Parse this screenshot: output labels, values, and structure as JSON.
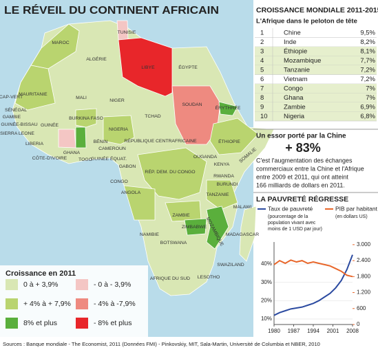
{
  "header": {
    "title": "LE RÉVEIL DU CONTINENT AFRICAIN"
  },
  "map": {
    "countries": [
      "MAROC",
      "ALGÉRIE",
      "TUNISIE",
      "LIBYE",
      "ÉGYPTE",
      "CAP-VERT",
      "MAURITANIE",
      "MALI",
      "NIGER",
      "TCHAD",
      "SOUDAN",
      "ÉRYTHRÉE",
      "SÉNÉGAL",
      "GAMBIE",
      "GUINÉE-BISSAU",
      "GUINÉE",
      "SIERRA LEONE",
      "LIBERIA",
      "BURKINA FASO",
      "NIGERIA",
      "CÔTE-D'IVOIRE",
      "GHANA",
      "TOGO",
      "BÉNIN",
      "CAMEROUN",
      "GUINÉE ÉQUAT.",
      "GABON",
      "RÉPUBLIQUE CENTRAFRICAINE",
      "ÉTHIOPIE",
      "OUGANDA",
      "KENYA",
      "CONGO",
      "RÉP. DEM. DU CONGO",
      "RWANDA",
      "BURUNDI",
      "TANZANIE",
      "ANGOLA",
      "MALAWI",
      "ZAMBIE",
      "ZIMBABWE",
      "MOZAMBIQUE",
      "NAMIBIE",
      "BOTSWANA",
      "MADAGASCAR",
      "SWAZILAND",
      "AFRIQUE DU SUD",
      "LESOTHO",
      "SOMALIE"
    ]
  },
  "legend": {
    "title": "Croissance en 2011",
    "items": [
      "0 à + 3,9%",
      "+ 4% à + 7,9%",
      "8% et plus",
      "- 0 à - 3,9%",
      "- 4% à -7,9%",
      "- 8% et plus"
    ]
  },
  "ranking": {
    "title": "CROISSANCE MONDIALE 2011-2015",
    "subtitle": "L'Afrique dans le peloton de tête",
    "rows": [
      [
        "1",
        "Chine",
        "9,5%"
      ],
      [
        "2",
        "Inde",
        "8,2%"
      ],
      [
        "3",
        "Éthiopie",
        "8,1%"
      ],
      [
        "4",
        "Mozambique",
        "7,7%"
      ],
      [
        "5",
        "Tanzanie",
        "7,2%"
      ],
      [
        "6",
        "Vietnam",
        "7,2%"
      ],
      [
        "7",
        "Congo",
        "7%"
      ],
      [
        "8",
        "Ghana",
        "7%"
      ],
      [
        "9",
        "Zambie",
        "6,9%"
      ],
      [
        "10",
        "Nigeria",
        "6,8%"
      ]
    ]
  },
  "china": {
    "title": "Un essor porté par la Chine",
    "figure": "+ 83%",
    "text": [
      "C'est l'augmentation des échanges",
      "commerciaux entre la Chine et l'Afrique",
      "entre 2009 et 2011, qui ont atteint",
      "166 milliards de dollars en 2011."
    ]
  },
  "chart_data": {
    "type": "line",
    "title": "LA PAUVRETÉ RÉGRESSE",
    "x": [
      1980,
      1982,
      1984,
      1986,
      1988,
      1990,
      1992,
      1994,
      1996,
      1998,
      2000,
      2002,
      2004,
      2006,
      2008
    ],
    "series": [
      {
        "name": "Taux de pauvreté",
        "note": [
          "(pourcentage de la",
          "population vivant avec",
          "moins de 1 USD par jour)"
        ],
        "color": "#2b4aa0",
        "values": [
          12,
          13.5,
          14.5,
          15.5,
          16,
          16.5,
          17.5,
          18.5,
          20,
          22,
          24,
          27,
          31,
          37,
          45
        ]
      },
      {
        "name": "PIB par habitant",
        "note": [
          "(en dollars US)"
        ],
        "color": "#e8662a",
        "axis": "y2",
        "values": [
          2250,
          2400,
          2300,
          2420,
          2350,
          2400,
          2300,
          2350,
          2300,
          2250,
          2200,
          2100,
          2000,
          1850,
          1800
        ]
      }
    ],
    "xlim": [
      1980,
      2008
    ],
    "xticks": [
      1980,
      1987,
      1994,
      2001,
      2008
    ],
    "ylim": [
      7,
      52
    ],
    "yticks": [
      {
        "value": 10,
        "label": "10%"
      },
      {
        "value": 20,
        "label": "20%"
      },
      {
        "value": 30,
        "label": "30%"
      },
      {
        "value": 40,
        "label": "40%"
      }
    ],
    "y2lim": [
      0,
      3100
    ],
    "y2ticks": [
      {
        "value": 0,
        "label": "0"
      },
      {
        "value": 600,
        "label": "600"
      },
      {
        "value": 1200,
        "label": "1.200"
      },
      {
        "value": 1800,
        "label": "1.800"
      },
      {
        "value": 2400,
        "label": "2.400"
      },
      {
        "value": 3000,
        "label": "3.000"
      }
    ]
  },
  "footer": {
    "source": "Sources : Banque mondiale - The Economist, 2011 (Données FMI) - Pinkovskiy, MIT, Sala-Martin, Université de Columbia et NBER, 2010"
  }
}
